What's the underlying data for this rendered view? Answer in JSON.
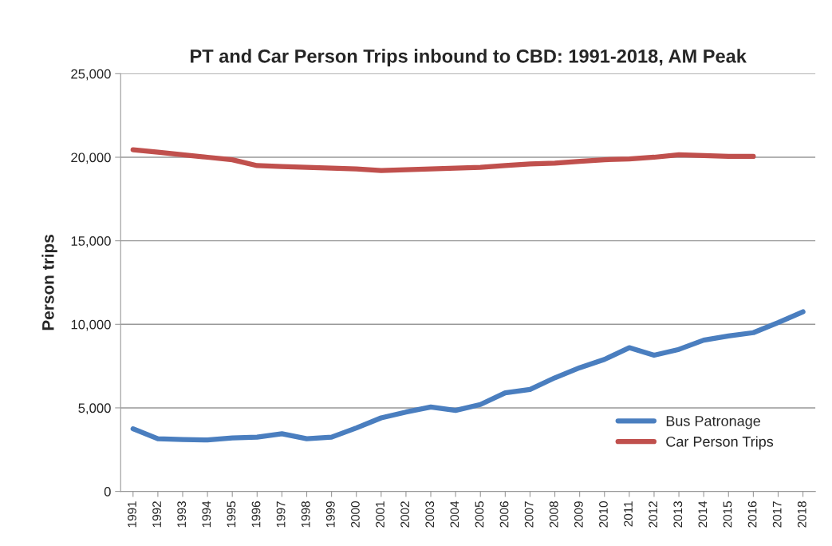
{
  "chart_data": {
    "type": "line",
    "title": "PT and Car Person Trips inbound to CBD: 1991-2018, AM Peak",
    "ylabel": "Person trips",
    "categories": [
      "1991",
      "1992",
      "1993",
      "1994",
      "1995",
      "1996",
      "1997",
      "1998",
      "1999",
      "2000",
      "2001",
      "2002",
      "2003",
      "2004",
      "2005",
      "2006",
      "2007",
      "2008",
      "2009",
      "2010",
      "2011",
      "2012",
      "2013",
      "2014",
      "2015",
      "2016",
      "2017",
      "2018"
    ],
    "series": [
      {
        "name": "Bus Patronage",
        "color": "#4a7ebf",
        "values": [
          3750,
          3150,
          3100,
          3080,
          3200,
          3250,
          3450,
          3150,
          3250,
          3800,
          4400,
          4750,
          5050,
          4850,
          5200,
          5900,
          6100,
          6800,
          7400,
          7900,
          8600,
          8150,
          8500,
          9050,
          9300,
          9500,
          10100,
          10750
        ]
      },
      {
        "name": "Car Person Trips",
        "color": "#c0504d",
        "values": [
          20450,
          20300,
          20150,
          20000,
          19850,
          19500,
          19450,
          19400,
          19350,
          19300,
          19200,
          19250,
          19300,
          19350,
          19400,
          19500,
          19600,
          19650,
          19750,
          19850,
          19900,
          20000,
          20150,
          20100,
          20050,
          20050,
          null,
          null
        ]
      }
    ],
    "ylim": [
      0,
      25000
    ],
    "yticks": [
      {
        "value": 0,
        "label": "0"
      },
      {
        "value": 5000,
        "label": "5,000"
      },
      {
        "value": 10000,
        "label": "10,000"
      },
      {
        "value": 15000,
        "label": "15,000"
      },
      {
        "value": 20000,
        "label": "20,000"
      },
      {
        "value": 25000,
        "label": "25,000"
      }
    ],
    "grid": "y",
    "legend": "bottom right",
    "marker": "none",
    "line_style": "solid"
  }
}
